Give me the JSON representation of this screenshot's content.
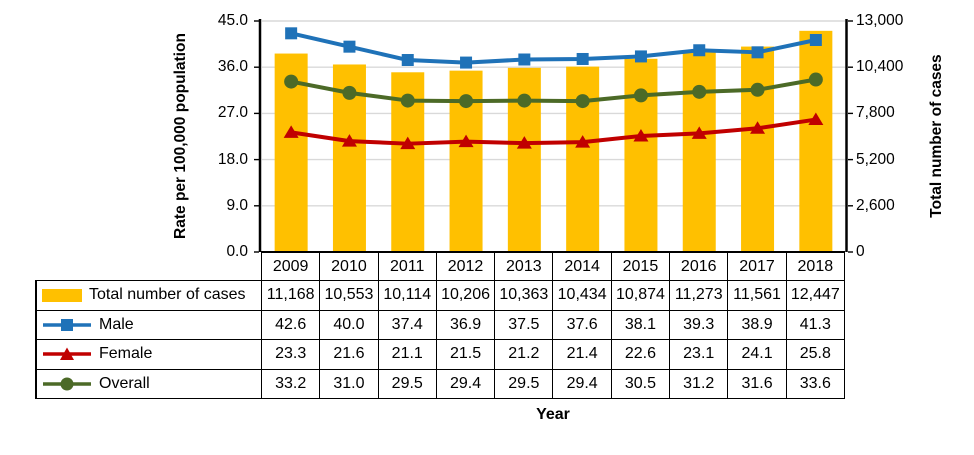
{
  "chart_data": {
    "type": "combo",
    "categories": [
      2009,
      2010,
      2011,
      2012,
      2013,
      2014,
      2015,
      2016,
      2017,
      2018
    ],
    "series": [
      {
        "name": "Total number of cases",
        "type": "bar",
        "y_axis": "right",
        "color": "#FFC000",
        "values": [
          11168,
          10553,
          10114,
          10206,
          10363,
          10434,
          10874,
          11273,
          11561,
          12447
        ]
      },
      {
        "name": "Male",
        "type": "line",
        "marker": "square",
        "y_axis": "left",
        "color": "#1F72B8",
        "values": [
          42.6,
          40.0,
          37.4,
          36.9,
          37.5,
          37.6,
          38.1,
          39.3,
          38.9,
          41.3
        ]
      },
      {
        "name": "Female",
        "type": "line",
        "marker": "triangle",
        "y_axis": "left",
        "color": "#C00000",
        "values": [
          23.3,
          21.6,
          21.1,
          21.5,
          21.2,
          21.4,
          22.6,
          23.1,
          24.1,
          25.8
        ]
      },
      {
        "name": "Overall",
        "type": "line",
        "marker": "circle",
        "y_axis": "left",
        "color": "#4C6A27",
        "values": [
          33.2,
          31.0,
          29.5,
          29.4,
          29.5,
          29.4,
          30.5,
          31.2,
          31.6,
          33.6
        ]
      }
    ],
    "left_axis": {
      "label": "Rate per 100,000 population",
      "min": 0,
      "max": 45,
      "step": 9,
      "tick_labels": [
        "45.0",
        "36.0",
        "27.0",
        "18.0",
        "9.0",
        "0.0"
      ]
    },
    "right_axis": {
      "label": "Total number of cases",
      "min": 0,
      "max": 13000,
      "step": 2600,
      "tick_labels": [
        "13,000",
        "10,400",
        "7,800",
        "5,200",
        "2,600",
        "0"
      ]
    },
    "x_axis": {
      "label": "Year"
    },
    "grid": true,
    "gridline_color": "#D9D9D9",
    "legend_position": "data-table-left"
  },
  "table": {
    "header_years": [
      "2009",
      "2010",
      "2011",
      "2012",
      "2013",
      "2014",
      "2015",
      "2016",
      "2017",
      "2018"
    ],
    "rows": [
      {
        "key": "total-cases-swatch",
        "label": "Total number of cases",
        "values": [
          "11,168",
          "10,553",
          "10,114",
          "10,206",
          "10,363",
          "10,434",
          "10,874",
          "11,273",
          "11,561",
          "12,447"
        ]
      },
      {
        "key": "male-line-key",
        "label": "Male",
        "values": [
          "42.6",
          "40.0",
          "37.4",
          "36.9",
          "37.5",
          "37.6",
          "38.1",
          "39.3",
          "38.9",
          "41.3"
        ]
      },
      {
        "key": "female-line-key",
        "label": "Female",
        "values": [
          "23.3",
          "21.6",
          "21.1",
          "21.5",
          "21.2",
          "21.4",
          "22.6",
          "23.1",
          "24.1",
          "25.8"
        ]
      },
      {
        "key": "overall-line-key",
        "label": "Overall",
        "values": [
          "33.2",
          "31.0",
          "29.5",
          "29.4",
          "29.5",
          "29.4",
          "30.5",
          "31.2",
          "31.6",
          "33.6"
        ]
      }
    ]
  }
}
